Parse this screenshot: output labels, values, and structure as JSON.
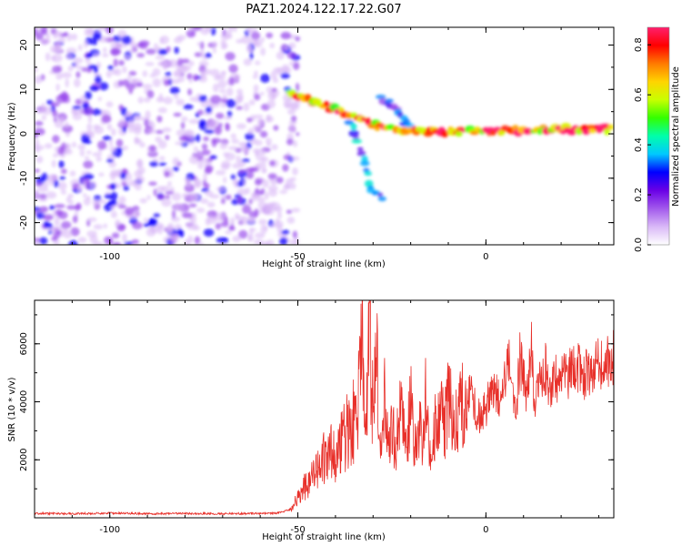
{
  "title": "PAZ1.2024.122.17.22.G07",
  "chart_data": [
    {
      "type": "heatmap",
      "xlabel": "Height of straight line (km)",
      "ylabel": "Frequency (Hz)",
      "xlim": [
        -120,
        34
      ],
      "ylim": [
        -25,
        24
      ],
      "xticks": [
        -100,
        -50,
        0
      ],
      "yticks": [
        -20,
        -10,
        0,
        10,
        20
      ],
      "colorbar": {
        "label": "Normalized spectral amplitude",
        "range": [
          0,
          0.87
        ],
        "ticks": [
          0.0,
          0.2,
          0.4,
          0.6,
          0.8
        ],
        "colormap": [
          "#ffffff",
          "#d9b8f7",
          "#a259ec",
          "#6a00e6",
          "#0000ff",
          "#00c8ff",
          "#00ffaa",
          "#33ff00",
          "#c8ff00",
          "#ffd400",
          "#ff7a00",
          "#ff0000",
          "#ff1f6e"
        ]
      },
      "features": [
        {
          "name": "noise region",
          "x_range": [
            -120,
            -52
          ],
          "f_range": [
            -25,
            24
          ],
          "amplitude": 0.1
        },
        {
          "name": "main signal",
          "points": [
            [
              -52,
              9
            ],
            [
              -45,
              7
            ],
            [
              -38,
              5
            ],
            [
              -33,
              3
            ],
            [
              -28,
              1.5
            ],
            [
              -22,
              1
            ],
            [
              -15,
              0.5
            ],
            [
              0,
              0.5
            ],
            [
              15,
              1
            ],
            [
              34,
              1
            ]
          ],
          "amplitude": 0.8
        },
        {
          "name": "lower branch",
          "points": [
            [
              -36,
              3
            ],
            [
              -34,
              -2
            ],
            [
              -32,
              -7
            ],
            [
              -31,
              -12
            ],
            [
              -27,
              -15
            ]
          ],
          "amplitude": 0.35
        },
        {
          "name": "upper branch",
          "points": [
            [
              -28,
              8
            ],
            [
              -24,
              6
            ],
            [
              -22,
              3
            ],
            [
              -20,
              1
            ]
          ],
          "amplitude": 0.3
        }
      ]
    },
    {
      "type": "line",
      "xlabel": "Height of straight line (km)",
      "ylabel": "SNR (10 * v/v)",
      "xlim": [
        -120,
        34
      ],
      "ylim": [
        0,
        7500
      ],
      "xticks": [
        -100,
        -50,
        0
      ],
      "yticks": [
        2000,
        4000,
        6000
      ],
      "series": [
        {
          "color": "#e8302a",
          "x": [
            -120,
            -110,
            -100,
            -90,
            -80,
            -70,
            -60,
            -55,
            -52,
            -50,
            -48,
            -46,
            -44,
            -42,
            -40,
            -38,
            -36,
            -34,
            -33,
            -32,
            -31,
            -30,
            -29,
            -28,
            -27,
            -26,
            -25,
            -24,
            -23,
            -22,
            -21,
            -20,
            -19,
            -18,
            -17,
            -16,
            -15,
            -14,
            -13,
            -12,
            -11,
            -10,
            -8,
            -6,
            -4,
            -2,
            0,
            2,
            4,
            6,
            7,
            8,
            9,
            10,
            11,
            12,
            13,
            14,
            15,
            16,
            17,
            18,
            20,
            22,
            24,
            26,
            28,
            30,
            32,
            34
          ],
          "y": [
            150,
            140,
            160,
            140,
            150,
            140,
            150,
            170,
            300,
            700,
            1100,
            1400,
            1800,
            2400,
            2000,
            2700,
            3200,
            3600,
            6600,
            2200,
            7500,
            3400,
            5500,
            2600,
            4500,
            2300,
            3800,
            1900,
            3700,
            3200,
            2600,
            4100,
            2300,
            3200,
            2700,
            4300,
            2400,
            3300,
            3000,
            3700,
            3200,
            4000,
            3300,
            3900,
            4300,
            3500,
            3800,
            4500,
            3900,
            5400,
            4600,
            3500,
            5500,
            4800,
            4200,
            6000,
            3800,
            5000,
            4600,
            5200,
            4400,
            4900,
            4700,
            5000,
            5200,
            4900,
            5200,
            5400,
            5300,
            5500
          ]
        }
      ]
    }
  ]
}
